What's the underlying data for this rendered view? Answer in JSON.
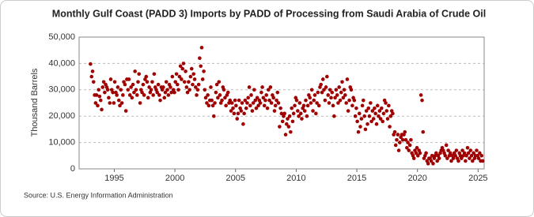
{
  "chart_data": {
    "type": "scatter",
    "title": "Monthly Gulf Coast (PADD 3) Imports by PADD of Processing from Saudi Arabia of Crude Oil",
    "y_label": "Thousand Barrels",
    "source": "Source: U.S. Energy Information Administration",
    "color": "#a00000",
    "grid": true,
    "xlim": [
      1992.1,
      2025.5
    ],
    "xticks": [
      1995,
      2000,
      2005,
      2010,
      2015,
      2020,
      2025
    ],
    "ylim": [
      0,
      50000
    ],
    "yticks": [
      0,
      {
        "value": 10000,
        "label": "10,000"
      },
      {
        "value": 20000,
        "label": "20,000"
      },
      {
        "value": 30000,
        "label": "30,000"
      },
      {
        "value": 40000,
        "label": "40,000"
      },
      {
        "value": 50000,
        "label": "50,000"
      }
    ],
    "x": [
      1993.04,
      1993.13,
      1993.21,
      1993.29,
      1993.38,
      1993.46,
      1993.54,
      1993.63,
      1993.71,
      1993.79,
      1993.88,
      1993.96,
      1994.04,
      1994.13,
      1994.21,
      1994.29,
      1994.38,
      1994.46,
      1994.54,
      1994.63,
      1994.71,
      1994.79,
      1994.88,
      1994.96,
      1995.04,
      1995.13,
      1995.21,
      1995.29,
      1995.38,
      1995.46,
      1995.54,
      1995.63,
      1995.71,
      1995.79,
      1995.88,
      1995.96,
      1996.04,
      1996.13,
      1996.21,
      1996.29,
      1996.38,
      1996.46,
      1996.54,
      1996.63,
      1996.71,
      1996.79,
      1996.88,
      1996.96,
      1997.04,
      1997.13,
      1997.21,
      1997.29,
      1997.38,
      1997.46,
      1997.54,
      1997.63,
      1997.71,
      1997.79,
      1997.88,
      1997.96,
      1998.04,
      1998.13,
      1998.21,
      1998.29,
      1998.38,
      1998.46,
      1998.54,
      1998.63,
      1998.71,
      1998.79,
      1998.88,
      1998.96,
      1999.04,
      1999.13,
      1999.21,
      1999.29,
      1999.38,
      1999.46,
      1999.54,
      1999.63,
      1999.71,
      1999.79,
      1999.88,
      1999.96,
      2000.04,
      2000.13,
      2000.21,
      2000.29,
      2000.38,
      2000.46,
      2000.54,
      2000.63,
      2000.71,
      2000.79,
      2000.88,
      2000.96,
      2001.04,
      2001.13,
      2001.21,
      2001.29,
      2001.38,
      2001.46,
      2001.54,
      2001.63,
      2001.71,
      2001.79,
      2001.88,
      2001.96,
      2002.04,
      2002.13,
      2002.21,
      2002.29,
      2002.38,
      2002.46,
      2002.54,
      2002.63,
      2002.71,
      2002.79,
      2002.88,
      2002.96,
      2003.04,
      2003.13,
      2003.21,
      2003.29,
      2003.38,
      2003.46,
      2003.54,
      2003.63,
      2003.71,
      2003.79,
      2003.88,
      2003.96,
      2004.04,
      2004.13,
      2004.21,
      2004.29,
      2004.38,
      2004.46,
      2004.54,
      2004.63,
      2004.71,
      2004.79,
      2004.88,
      2004.96,
      2005.04,
      2005.13,
      2005.21,
      2005.29,
      2005.38,
      2005.46,
      2005.54,
      2005.63,
      2005.71,
      2005.79,
      2005.88,
      2005.96,
      2006.04,
      2006.13,
      2006.21,
      2006.29,
      2006.38,
      2006.46,
      2006.54,
      2006.63,
      2006.71,
      2006.79,
      2006.88,
      2006.96,
      2007.04,
      2007.13,
      2007.21,
      2007.29,
      2007.38,
      2007.46,
      2007.54,
      2007.63,
      2007.71,
      2007.79,
      2007.88,
      2007.96,
      2008.04,
      2008.13,
      2008.21,
      2008.29,
      2008.38,
      2008.46,
      2008.54,
      2008.63,
      2008.71,
      2008.79,
      2008.88,
      2008.96,
      2009.04,
      2009.13,
      2009.21,
      2009.29,
      2009.38,
      2009.46,
      2009.54,
      2009.63,
      2009.71,
      2009.79,
      2009.88,
      2009.96,
      2010.04,
      2010.13,
      2010.21,
      2010.29,
      2010.38,
      2010.46,
      2010.54,
      2010.63,
      2010.71,
      2010.79,
      2010.88,
      2010.96,
      2011.04,
      2011.13,
      2011.21,
      2011.29,
      2011.38,
      2011.46,
      2011.54,
      2011.63,
      2011.71,
      2011.79,
      2011.88,
      2011.96,
      2012.04,
      2012.13,
      2012.21,
      2012.29,
      2012.38,
      2012.46,
      2012.54,
      2012.63,
      2012.71,
      2012.79,
      2012.88,
      2012.96,
      2013.04,
      2013.13,
      2013.21,
      2013.29,
      2013.38,
      2013.46,
      2013.54,
      2013.63,
      2013.71,
      2013.79,
      2013.88,
      2013.96,
      2014.04,
      2014.13,
      2014.21,
      2014.29,
      2014.38,
      2014.46,
      2014.54,
      2014.63,
      2014.71,
      2014.79,
      2014.88,
      2014.96,
      2015.04,
      2015.13,
      2015.21,
      2015.29,
      2015.38,
      2015.46,
      2015.54,
      2015.63,
      2015.71,
      2015.79,
      2015.88,
      2015.96,
      2016.04,
      2016.13,
      2016.21,
      2016.29,
      2016.38,
      2016.46,
      2016.54,
      2016.63,
      2016.71,
      2016.79,
      2016.88,
      2016.96,
      2017.04,
      2017.13,
      2017.21,
      2017.29,
      2017.38,
      2017.46,
      2017.54,
      2017.63,
      2017.71,
      2017.79,
      2017.88,
      2017.96,
      2018.04,
      2018.13,
      2018.21,
      2018.29,
      2018.38,
      2018.46,
      2018.54,
      2018.63,
      2018.71,
      2018.79,
      2018.88,
      2018.96,
      2019.04,
      2019.13,
      2019.21,
      2019.29,
      2019.38,
      2019.46,
      2019.54,
      2019.63,
      2019.71,
      2019.79,
      2019.88,
      2019.96,
      2020.04,
      2020.13,
      2020.21,
      2020.29,
      2020.38,
      2020.46,
      2020.54,
      2020.63,
      2020.71,
      2020.79,
      2020.88,
      2020.96,
      2021.04,
      2021.13,
      2021.21,
      2021.29,
      2021.38,
      2021.46,
      2021.54,
      2021.63,
      2021.71,
      2021.79,
      2021.88,
      2021.96,
      2022.04,
      2022.13,
      2022.21,
      2022.29,
      2022.38,
      2022.46,
      2022.54,
      2022.63,
      2022.71,
      2022.79,
      2022.88,
      2022.96,
      2023.04,
      2023.13,
      2023.21,
      2023.29,
      2023.38,
      2023.46,
      2023.54,
      2023.63,
      2023.71,
      2023.79,
      2023.88,
      2023.96,
      2024.04,
      2024.13,
      2024.21,
      2024.29,
      2024.38,
      2024.46,
      2024.54,
      2024.63,
      2024.71,
      2024.79,
      2024.88,
      2024.96,
      2025.04,
      2025.13,
      2025.21,
      2025.29,
      2025.38
    ],
    "values": [
      39800,
      35000,
      37000,
      33000,
      28000,
      25000,
      28000,
      24000,
      30000,
      27500,
      26000,
      22500,
      31000,
      33000,
      29000,
      32000,
      31000,
      30000,
      27000,
      25000,
      34000,
      30000,
      29000,
      25000,
      33000,
      29000,
      28000,
      31000,
      26000,
      24000,
      30000,
      25000,
      28000,
      33000,
      32000,
      22000,
      34000,
      30000,
      34000,
      28000,
      31000,
      27000,
      32000,
      29000,
      37000,
      30000,
      28000,
      33000,
      36000,
      25000,
      30000,
      29000,
      32000,
      28000,
      34000,
      35000,
      33000,
      27000,
      31000,
      29000,
      30000,
      33000,
      28000,
      36000,
      31000,
      30000,
      29000,
      32000,
      28000,
      26000,
      31000,
      30000,
      31000,
      27000,
      29000,
      33000,
      30000,
      28000,
      32000,
      31000,
      29000,
      35000,
      30000,
      29000,
      33000,
      36000,
      32000,
      30000,
      35000,
      39000,
      34000,
      38000,
      40000,
      33000,
      37000,
      31000,
      29000,
      33000,
      30000,
      35000,
      38000,
      32000,
      36000,
      34000,
      31000,
      28000,
      30000,
      32000,
      42000,
      39000,
      46000,
      34000,
      37000,
      30000,
      27000,
      25000,
      28000,
      24000,
      26000,
      31000,
      26000,
      24000,
      20000,
      25000,
      29000,
      32000,
      27000,
      33000,
      28000,
      25000,
      26000,
      31000,
      30000,
      27000,
      24000,
      28000,
      29000,
      25000,
      26000,
      22000,
      25000,
      23000,
      21000,
      26000,
      24000,
      19000,
      21000,
      26000,
      23000,
      22000,
      25000,
      17000,
      21000,
      26000,
      23000,
      25000,
      27000,
      31000,
      24000,
      28000,
      22000,
      25000,
      30000,
      26000,
      23000,
      27000,
      24000,
      26000,
      25000,
      29000,
      31000,
      27000,
      24000,
      26000,
      28000,
      23000,
      30000,
      26000,
      31000,
      25000,
      28000,
      27000,
      22000,
      24000,
      26000,
      29000,
      25000,
      16000,
      23000,
      21000,
      18000,
      20000,
      21000,
      13000,
      17000,
      19000,
      16000,
      20000,
      14000,
      23000,
      18000,
      21000,
      24000,
      27000,
      26000,
      22000,
      20000,
      25000,
      21000,
      19000,
      23000,
      24000,
      22000,
      26000,
      20000,
      24000,
      28000,
      27000,
      25000,
      30000,
      22000,
      26000,
      28000,
      21000,
      25000,
      29000,
      24000,
      31000,
      32000,
      29000,
      34000,
      30000,
      26000,
      31000,
      35000,
      28000,
      25000,
      30000,
      27000,
      29000,
      24000,
      20000,
      27000,
      30000,
      28000,
      25000,
      31000,
      26000,
      29000,
      33000,
      27000,
      30000,
      28000,
      25000,
      34000,
      22000,
      26000,
      31000,
      30000,
      24000,
      27000,
      26000,
      20000,
      23000,
      18000,
      14000,
      21000,
      16000,
      19000,
      24000,
      26000,
      20000,
      15000,
      22000,
      17000,
      23000,
      20000,
      25000,
      18000,
      22000,
      19000,
      23000,
      21000,
      17000,
      24000,
      20000,
      22000,
      19000,
      23000,
      18000,
      21000,
      26000,
      25000,
      22000,
      19000,
      24000,
      16000,
      20000,
      22000,
      21000,
      13000,
      14000,
      9000,
      11000,
      13000,
      7000,
      10000,
      12000,
      13000,
      11000,
      13000,
      14000,
      11000,
      8000,
      10000,
      7000,
      9000,
      11000,
      6000,
      5000,
      4000,
      7000,
      6000,
      8000,
      5000,
      7000,
      6000,
      28000,
      26000,
      14000,
      4000,
      5000,
      6000,
      3000,
      2000,
      4000,
      4000,
      3000,
      5000,
      2000,
      4000,
      5000,
      6000,
      3000,
      5000,
      4000,
      6000,
      7000,
      8000,
      7000,
      6000,
      5000,
      9000,
      4000,
      7000,
      5000,
      6000,
      3000,
      5000,
      4000,
      6000,
      5000,
      7000,
      4000,
      3000,
      6000,
      5000,
      4000,
      7000,
      5000,
      6000,
      3000,
      5000,
      8000,
      6000,
      4000,
      7000,
      5000,
      3000,
      6000,
      4000,
      5000,
      7000,
      5000,
      4000,
      6000,
      3000,
      5000,
      3000
    ]
  }
}
